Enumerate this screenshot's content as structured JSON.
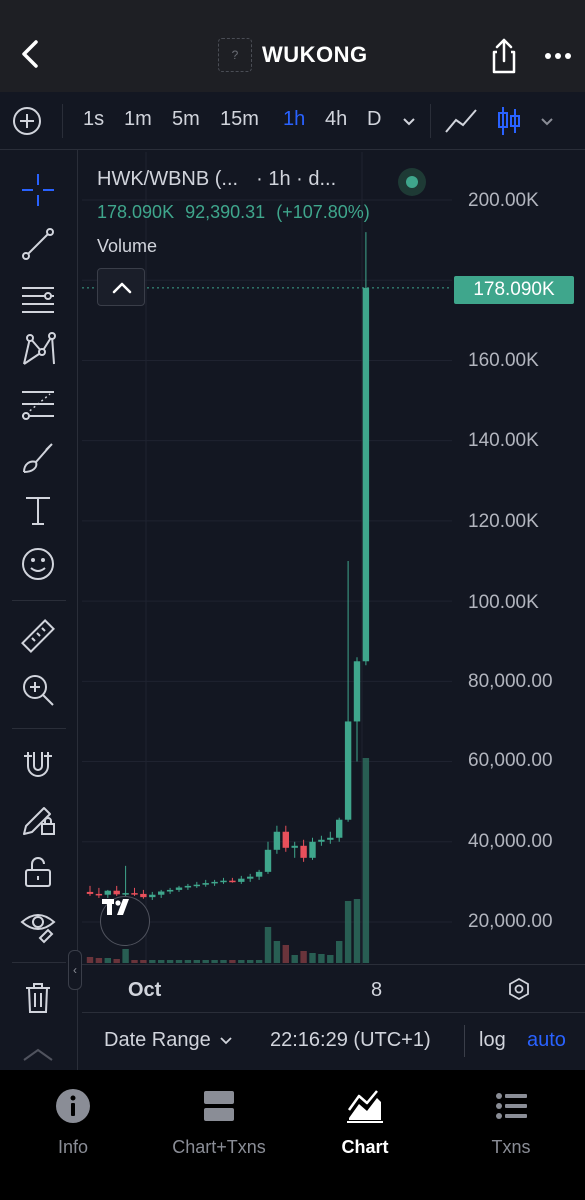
{
  "header": {
    "title": "WUKONG",
    "token_logo_placeholder": "?"
  },
  "toolbar": {
    "timeframes": [
      "1s",
      "1m",
      "5m",
      "15m",
      "1h",
      "4h",
      "D"
    ],
    "active_timeframe": "1h"
  },
  "legend": {
    "pair": "HWK/WBNB (...",
    "interval": "· 1h · d...",
    "price": "178.090K",
    "change_abs": "92,390.31",
    "change_pct": "(+107.80%)",
    "volume_label": "Volume"
  },
  "price_axis": {
    "labels": [
      "200.00K",
      "160.00K",
      "140.00K",
      "120.00K",
      "100.00K",
      "80,000.00",
      "60,000.00",
      "40,000.00",
      "20,000.00"
    ],
    "current_price_tag": "178.090K"
  },
  "time_axis": {
    "labels": [
      "Oct",
      "8"
    ]
  },
  "range_bar": {
    "date_range_label": "Date Range",
    "clock": "22:16:29 (UTC+1)",
    "log_label": "log",
    "auto_label": "auto"
  },
  "tabs": [
    {
      "label": "Info",
      "icon": "info-icon"
    },
    {
      "label": "Chart+Txns",
      "icon": "split-view-icon"
    },
    {
      "label": "Chart",
      "icon": "chart-area-icon",
      "active": true
    },
    {
      "label": "Txns",
      "icon": "list-icon"
    }
  ],
  "colors": {
    "up": "#3fa68c",
    "down": "#e8505b",
    "accent": "#2962ff",
    "background": "#131722"
  },
  "chart_data": {
    "type": "candlestick",
    "title": "HWK/WBNB",
    "y_range": [
      0,
      210000
    ],
    "candles": [
      {
        "o": 27500,
        "h": 29000,
        "l": 26500,
        "c": 27000
      },
      {
        "o": 27000,
        "h": 28500,
        "l": 26000,
        "c": 26800
      },
      {
        "o": 26800,
        "h": 28000,
        "l": 26000,
        "c": 27800
      },
      {
        "o": 27800,
        "h": 29000,
        "l": 26500,
        "c": 26900
      },
      {
        "o": 26900,
        "h": 34000,
        "l": 26000,
        "c": 27200
      },
      {
        "o": 27200,
        "h": 28500,
        "l": 26500,
        "c": 27000
      },
      {
        "o": 27000,
        "h": 28000,
        "l": 25800,
        "c": 26200
      },
      {
        "o": 26200,
        "h": 27500,
        "l": 25500,
        "c": 26800
      },
      {
        "o": 26800,
        "h": 28000,
        "l": 26000,
        "c": 27600
      },
      {
        "o": 27600,
        "h": 28500,
        "l": 27000,
        "c": 28000
      },
      {
        "o": 28000,
        "h": 29000,
        "l": 27500,
        "c": 28600
      },
      {
        "o": 28600,
        "h": 29500,
        "l": 28000,
        "c": 29000
      },
      {
        "o": 29000,
        "h": 30000,
        "l": 28500,
        "c": 29300
      },
      {
        "o": 29300,
        "h": 30500,
        "l": 28800,
        "c": 29700
      },
      {
        "o": 29700,
        "h": 30500,
        "l": 29000,
        "c": 30000
      },
      {
        "o": 30000,
        "h": 31000,
        "l": 29500,
        "c": 30300
      },
      {
        "o": 30300,
        "h": 31000,
        "l": 29800,
        "c": 30000
      },
      {
        "o": 30000,
        "h": 31500,
        "l": 29500,
        "c": 30800
      },
      {
        "o": 30800,
        "h": 32000,
        "l": 30000,
        "c": 31300
      },
      {
        "o": 31300,
        "h": 33000,
        "l": 30500,
        "c": 32500
      },
      {
        "o": 32500,
        "h": 40000,
        "l": 32000,
        "c": 38000
      },
      {
        "o": 38000,
        "h": 44000,
        "l": 37000,
        "c": 42500
      },
      {
        "o": 42500,
        "h": 44000,
        "l": 37500,
        "c": 38500
      },
      {
        "o": 38500,
        "h": 40000,
        "l": 36000,
        "c": 39000
      },
      {
        "o": 39000,
        "h": 40500,
        "l": 35000,
        "c": 36000
      },
      {
        "o": 36000,
        "h": 41000,
        "l": 35500,
        "c": 40000
      },
      {
        "o": 40000,
        "h": 41500,
        "l": 39000,
        "c": 40500
      },
      {
        "o": 40500,
        "h": 42500,
        "l": 39500,
        "c": 41000
      },
      {
        "o": 41000,
        "h": 46000,
        "l": 40000,
        "c": 45500
      },
      {
        "o": 45500,
        "h": 110000,
        "l": 45000,
        "c": 70000
      },
      {
        "o": 70000,
        "h": 86000,
        "l": 60000,
        "c": 85000
      },
      {
        "o": 85000,
        "h": 192000,
        "l": 84000,
        "c": 178090
      }
    ],
    "volume": [
      6,
      5,
      5,
      4,
      14,
      3,
      3,
      3,
      3,
      3,
      3,
      3,
      3,
      3,
      3,
      3,
      3,
      3,
      3,
      3,
      36,
      22,
      18,
      8,
      12,
      10,
      9,
      8,
      22,
      62,
      64,
      205
    ]
  }
}
